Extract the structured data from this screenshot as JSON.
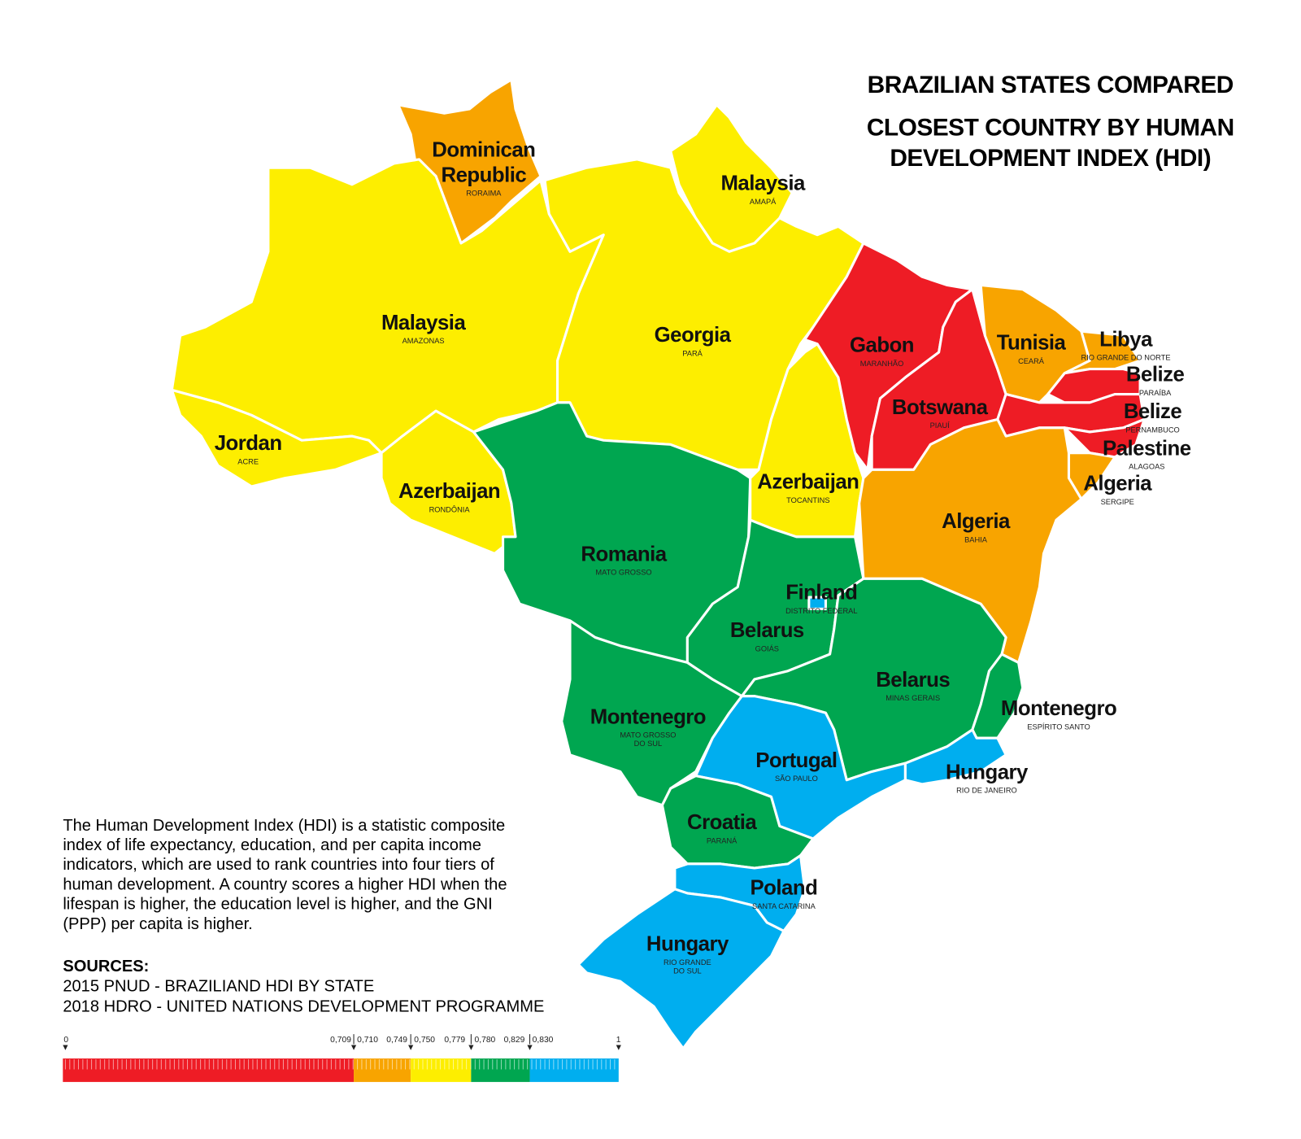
{
  "title": [
    "BRAZILIAN STATES COMPARED",
    "CLOSEST COUNTRY BY HUMAN",
    "DEVELOPMENT INDEX (HDI)"
  ],
  "description": [
    "The Human Development Index (HDI) is a statistic composite",
    "index of life expectancy, education, and per capita income",
    "indicators, which are used to rank countries into four tiers of",
    "human development. A country scores a higher HDI when the",
    "lifespan is higher, the education level is higher, and the GNI",
    "(PPP) per capita is higher."
  ],
  "sources": {
    "heading": "SOURCES:",
    "lines": [
      "2015 PNUD - BRAZILIAND HDI BY STATE",
      "2018 HDRO - UNITED NATIONS DEVELOPMENT PROGRAMME"
    ]
  },
  "legend": {
    "ticks": [
      "0",
      "0,709",
      "0,710",
      "0,749",
      "0,750",
      "0,779",
      "0,780",
      "0,829",
      "0,830",
      "1"
    ],
    "colors": [
      "#ee1c25",
      "#f8a400",
      "#fdee00",
      "#00a650",
      "#00aeef"
    ]
  },
  "states": [
    {
      "country": [
        "Dominican",
        "Republic"
      ],
      "state": "RORAIMA",
      "color": "#f8a400"
    },
    {
      "country": "Malaysia",
      "state": "AMAPÁ",
      "color": "#fdee00"
    },
    {
      "country": "Malaysia",
      "state": "AMAZONAS",
      "color": "#fdee00"
    },
    {
      "country": "Jordan",
      "state": "ACRE",
      "color": "#fdee00"
    },
    {
      "country": "Azerbaijan",
      "state": "RONDÔNIA",
      "color": "#fdee00"
    },
    {
      "country": "Georgia",
      "state": "PARÁ",
      "color": "#fdee00"
    },
    {
      "country": "Romania",
      "state": "MATO GROSSO",
      "color": "#00a650"
    },
    {
      "country": "Azerbaijan",
      "state": "TOCANTINS",
      "color": "#fdee00"
    },
    {
      "country": "Gabon",
      "state": "MARANHÃO",
      "color": "#ee1c25"
    },
    {
      "country": "Botswana",
      "state": "PIAUÍ",
      "color": "#ee1c25"
    },
    {
      "country": "Tunisia",
      "state": "CEARÁ",
      "color": "#f8a400"
    },
    {
      "country": "Libya",
      "state": "RIO GRANDE DO NORTE",
      "color": "#f8a400"
    },
    {
      "country": "Belize",
      "state": "PARAÍBA",
      "color": "#ee1c25"
    },
    {
      "country": "Belize",
      "state": "PERNAMBUCO",
      "color": "#ee1c25"
    },
    {
      "country": "Palestine",
      "state": "ALAGOAS",
      "color": "#ee1c25"
    },
    {
      "country": "Algeria",
      "state": "SERGIPE",
      "color": "#f8a400"
    },
    {
      "country": "Algeria",
      "state": "BAHIA",
      "color": "#f8a400"
    },
    {
      "country": "Belarus",
      "state": "GOIÁS",
      "color": "#00a650"
    },
    {
      "country": "Finland",
      "state": "DISTRITO FEDERAL",
      "color": "#00aeef"
    },
    {
      "country": "Belarus",
      "state": "MINAS GERAIS",
      "color": "#00a650"
    },
    {
      "country": "Montenegro",
      "state": "ESPÍRITO SANTO",
      "color": "#00a650"
    },
    {
      "country": "Montenegro",
      "state": [
        "MATO GROSSO",
        "DO SUL"
      ],
      "color": "#00a650"
    },
    {
      "country": "Portugal",
      "state": "SÃO PAULO",
      "color": "#00aeef"
    },
    {
      "country": "Hungary",
      "state": "RIO DE JANEIRO",
      "color": "#00aeef"
    },
    {
      "country": "Croatia",
      "state": "PARANÁ",
      "color": "#00a650"
    },
    {
      "country": "Poland",
      "state": "SANTA CATARINA",
      "color": "#00aeef"
    },
    {
      "country": "Hungary",
      "state": [
        "RIO GRANDE",
        "DO SUL"
      ],
      "color": "#00aeef"
    }
  ]
}
